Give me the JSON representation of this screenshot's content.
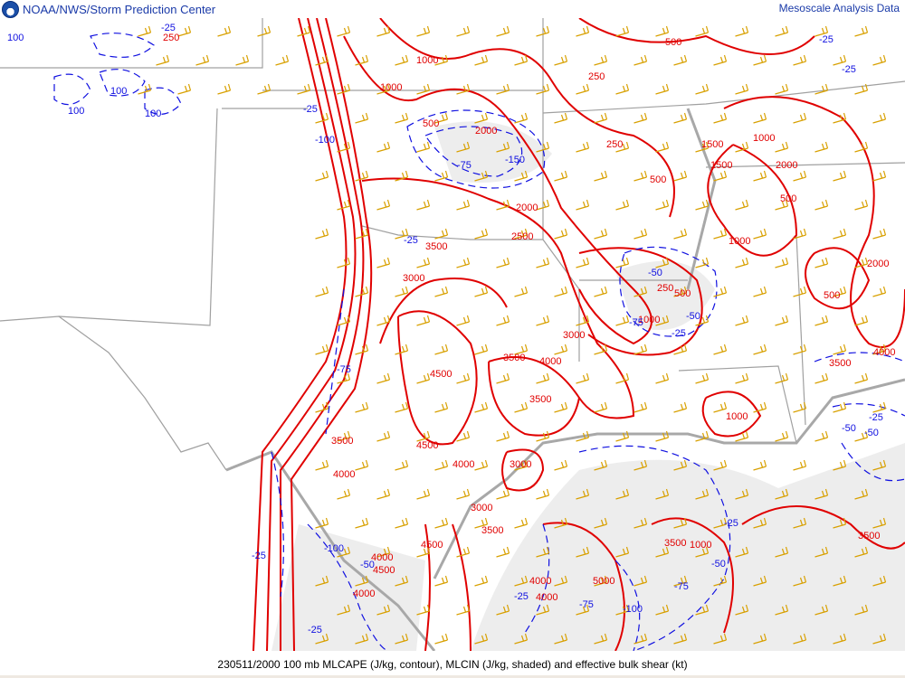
{
  "header": {
    "agency": "NOAA/NWS/Storm Prediction Center",
    "product": "Mesoscale Analysis Data",
    "logo": "noaa-logo"
  },
  "footer": {
    "caption": "230511/2000 100 mb MLCAPE (J/kg, contour), MLCIN (J/kg, shaded) and effective bulk shear (kt)"
  },
  "colors": {
    "cape_contour": "#e00000",
    "cin_contour": "#1010e0",
    "shear_barbs": "#d8a000",
    "borders": "#a0a0a0",
    "header_text": "#1a3aa8"
  },
  "map": {
    "cape_labels": [
      "250",
      "1000",
      "500",
      "1000",
      "500",
      "250",
      "250",
      "500",
      "2000",
      "1500",
      "1000",
      "1500",
      "2000",
      "500",
      "2000",
      "1000",
      "3500",
      "2500",
      "250",
      "500",
      "1000",
      "2000",
      "3000",
      "3000",
      "3500",
      "4000",
      "4500",
      "3500",
      "3500",
      "4500",
      "4000",
      "3000",
      "4000",
      "3000",
      "3500",
      "4500",
      "4000",
      "4500",
      "4000",
      "4000",
      "5000",
      "4000",
      "3500",
      "1000",
      "3500",
      "3500",
      "4000",
      "500",
      "1000"
    ],
    "cin_labels": [
      "-25",
      "100",
      "100",
      "100",
      "100",
      "-25",
      "-25",
      "-100",
      "-75",
      "-150",
      "-25",
      "-25",
      "-50",
      "-50",
      "-25",
      "-75",
      "-50",
      "-50",
      "-25",
      "-25",
      "-75",
      "-100",
      "-50",
      "-25",
      "-75",
      "-25",
      "-75",
      "-100",
      "-50",
      "-25"
    ]
  }
}
